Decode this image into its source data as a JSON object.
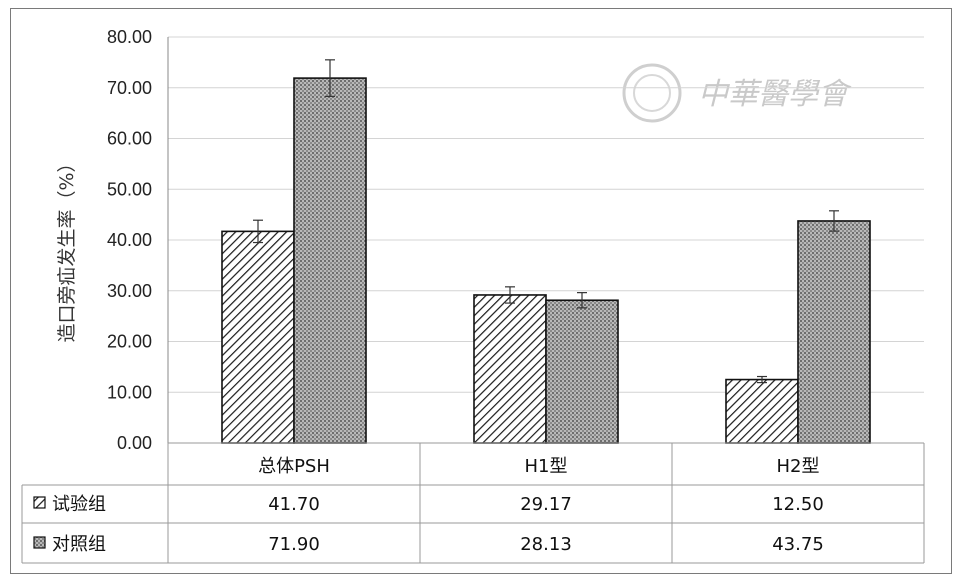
{
  "chart_data": {
    "type": "bar",
    "ylabel": "造口旁疝发生率（%）",
    "ylim": [
      0,
      80
    ],
    "yticks": [
      "0.00",
      "10.00",
      "20.00",
      "30.00",
      "40.00",
      "50.00",
      "60.00",
      "70.00",
      "80.00"
    ],
    "categories": [
      "总体PSH",
      "H1型",
      "H2型"
    ],
    "series": [
      {
        "name": "试验组",
        "values": [
          41.7,
          29.17,
          12.5
        ],
        "error": [
          2.2,
          1.6,
          0.6
        ],
        "labels": [
          "41.70",
          "29.17",
          "12.50"
        ],
        "pattern": "diagonal-hatch"
      },
      {
        "name": "对照组",
        "values": [
          71.9,
          28.13,
          43.75
        ],
        "error": [
          3.6,
          1.5,
          2.0
        ],
        "labels": [
          "71.90",
          "28.13",
          "43.75"
        ],
        "pattern": "dotted-gray"
      }
    ],
    "grid": true,
    "legend": "data-table"
  },
  "watermark": {
    "text": "中華醫學會"
  }
}
